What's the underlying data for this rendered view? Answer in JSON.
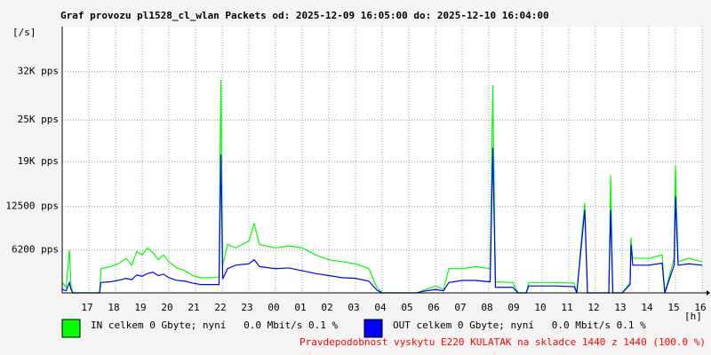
{
  "chart_data": {
    "type": "line",
    "title": "Graf provozu pl1528_cl_wlan Packets od: 2025-12-09 16:05:00 do: 2025-12-10 16:04:00",
    "y_label": "[/s]",
    "x_label": "[h]",
    "note": "Pravdepodobnost vyskytu E220 KULATAK na skladce 1440 z 1440 (100.0 %)",
    "xlim": [
      0,
      24
    ],
    "xticks": [
      {
        "value": 1,
        "label": "17"
      },
      {
        "value": 2,
        "label": "18"
      },
      {
        "value": 3,
        "label": "19"
      },
      {
        "value": 4,
        "label": "20"
      },
      {
        "value": 5,
        "label": "21"
      },
      {
        "value": 6,
        "label": "22"
      },
      {
        "value": 7,
        "label": "23"
      },
      {
        "value": 8,
        "label": "00"
      },
      {
        "value": 9,
        "label": "01"
      },
      {
        "value": 10,
        "label": "02"
      },
      {
        "value": 11,
        "label": "03"
      },
      {
        "value": 12,
        "label": "04"
      },
      {
        "value": 13,
        "label": "05"
      },
      {
        "value": 14,
        "label": "06"
      },
      {
        "value": 15,
        "label": "07"
      },
      {
        "value": 16,
        "label": "08"
      },
      {
        "value": 17,
        "label": "09"
      },
      {
        "value": 18,
        "label": "10"
      },
      {
        "value": 19,
        "label": "11"
      },
      {
        "value": 20,
        "label": "12"
      },
      {
        "value": 21,
        "label": "13"
      },
      {
        "value": 22,
        "label": "14"
      },
      {
        "value": 23,
        "label": "15"
      },
      {
        "value": 24,
        "label": "16"
      }
    ],
    "ylim": [
      0,
      38500
    ],
    "yticks": [
      {
        "value": 6200,
        "label": "6200 pps"
      },
      {
        "value": 12500,
        "label": "12500 pps"
      },
      {
        "value": 19000,
        "label": "19K pps"
      },
      {
        "value": 25000,
        "label": "25K pps"
      },
      {
        "value": 32000,
        "label": "32K pps"
      }
    ],
    "grid": true,
    "x": [
      0,
      0.15,
      0.27,
      0.33,
      0.4,
      1.4,
      1.45,
      1.8,
      2.1,
      2.4,
      2.6,
      2.8,
      3.0,
      3.2,
      3.4,
      3.6,
      3.8,
      4.0,
      4.3,
      4.6,
      4.9,
      5.2,
      5.6,
      5.88,
      5.95,
      6.02,
      6.2,
      6.5,
      7.0,
      7.2,
      7.4,
      8.0,
      8.5,
      9.0,
      9.5,
      10.0,
      10.5,
      11.0,
      11.5,
      11.8,
      12.0,
      13.3,
      13.5,
      14.0,
      14.3,
      14.5,
      15.0,
      15.5,
      16.05,
      16.15,
      16.25,
      16.9,
      17.1,
      17.4,
      17.5,
      18.5,
      19.2,
      19.3,
      19.5,
      19.6,
      19.7,
      20.5,
      20.57,
      20.65,
      21.0,
      21.3,
      21.33,
      21.4,
      22.0,
      22.5,
      22.6,
      22.95,
      23.0,
      23.1,
      23.5,
      24.0
    ],
    "series": [
      {
        "name": "IN celkem 0 Gbyte; nyní   0.0 Mbit/s 0.1 %",
        "color": "#00ff00",
        "values": [
          1500,
          800,
          6200,
          1000,
          0,
          0,
          3500,
          3800,
          4200,
          5000,
          4000,
          6000,
          5500,
          6500,
          5800,
          4800,
          5500,
          4500,
          3600,
          3200,
          2500,
          2200,
          2200,
          2300,
          30800,
          4000,
          7000,
          6500,
          7500,
          10000,
          7000,
          6500,
          6800,
          6500,
          5500,
          4800,
          4500,
          4200,
          3500,
          800,
          0,
          0,
          300,
          1000,
          500,
          3500,
          3500,
          3800,
          3500,
          30000,
          1600,
          1500,
          0,
          0,
          1500,
          1500,
          1400,
          0,
          9000,
          13000,
          0,
          0,
          17000,
          0,
          0,
          1500,
          8000,
          5000,
          5000,
          5500,
          0,
          5000,
          18500,
          4500,
          5000,
          4500
        ]
      },
      {
        "name": "OUT celkem 0 Gbyte; nyní   0.0 Mbit/s 0.1 %",
        "color": "#0000ff",
        "values": [
          500,
          300,
          1500,
          500,
          0,
          0,
          1500,
          1600,
          1800,
          2100,
          1900,
          2600,
          2400,
          2800,
          3000,
          2500,
          2700,
          2200,
          1800,
          1700,
          1400,
          1200,
          1200,
          1200,
          20000,
          2000,
          3500,
          4000,
          4200,
          4800,
          3800,
          3500,
          3600,
          3200,
          2800,
          2500,
          2200,
          2100,
          1700,
          400,
          0,
          0,
          200,
          500,
          300,
          1500,
          1800,
          1800,
          1600,
          21000,
          800,
          800,
          0,
          0,
          1000,
          1000,
          900,
          0,
          8000,
          12000,
          0,
          0,
          12000,
          0,
          0,
          1200,
          7000,
          4000,
          4000,
          4300,
          0,
          4000,
          14000,
          4000,
          4200,
          4000
        ]
      }
    ]
  }
}
